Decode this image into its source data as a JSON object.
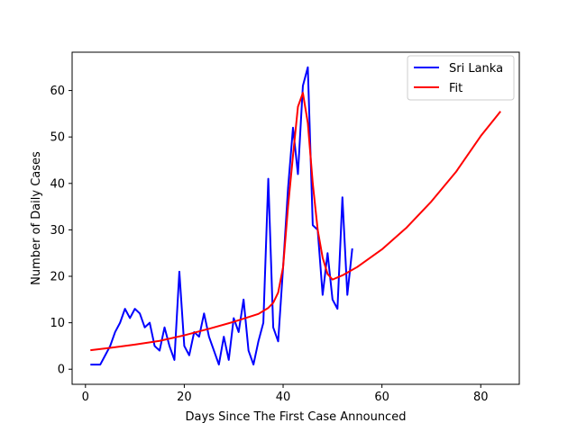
{
  "chart_data": {
    "type": "line",
    "xlabel": "Days Since The First Case Announced",
    "ylabel": "Number of Daily Cases",
    "xlim": [
      -2.7,
      87.8
    ],
    "ylim": [
      -3.25,
      68.25
    ],
    "xticks": [
      0,
      20,
      40,
      60,
      80
    ],
    "yticks": [
      0,
      10,
      20,
      30,
      40,
      50,
      60
    ],
    "grid": false,
    "legend_position": "top-right",
    "series": [
      {
        "name": "Sri Lanka",
        "color": "#0000ff",
        "x": [
          1,
          2,
          3,
          4,
          5,
          6,
          7,
          8,
          9,
          10,
          11,
          12,
          13,
          14,
          15,
          16,
          17,
          18,
          19,
          20,
          21,
          22,
          23,
          24,
          25,
          26,
          27,
          28,
          29,
          30,
          31,
          32,
          33,
          34,
          35,
          36,
          37,
          38,
          39,
          40,
          41,
          42,
          43,
          44,
          45,
          46,
          47,
          48,
          49,
          50,
          51,
          52,
          53,
          54
        ],
        "y": [
          1,
          1,
          1,
          3,
          5,
          8,
          10,
          13,
          11,
          13,
          12,
          9,
          10,
          5,
          4,
          9,
          5,
          2,
          21,
          5,
          3,
          8,
          7,
          12,
          7,
          4,
          1,
          7,
          2,
          11,
          8,
          15,
          4,
          1,
          6,
          10,
          41,
          9,
          6,
          22,
          39,
          52,
          42,
          61,
          65,
          31,
          30,
          16,
          25,
          15,
          13,
          37,
          16,
          26
        ]
      },
      {
        "name": "Fit",
        "color": "#ff0000",
        "x": [
          1,
          5,
          10,
          15,
          20,
          25,
          30,
          35,
          37,
          38,
          39,
          40,
          41,
          42,
          43,
          44,
          45,
          46,
          47,
          48,
          49,
          50,
          52,
          55,
          60,
          65,
          70,
          75,
          80,
          84
        ],
        "y": [
          4.1,
          4.6,
          5.3,
          6.1,
          7.3,
          8.7,
          10.2,
          11.9,
          13.2,
          14.3,
          16.5,
          22,
          35,
          46,
          56.5,
          59.5,
          53,
          40,
          30,
          24,
          20.5,
          19.3,
          20.2,
          22,
          25.8,
          30.5,
          36.1,
          42.5,
          50.2,
          55.5
        ]
      }
    ]
  }
}
